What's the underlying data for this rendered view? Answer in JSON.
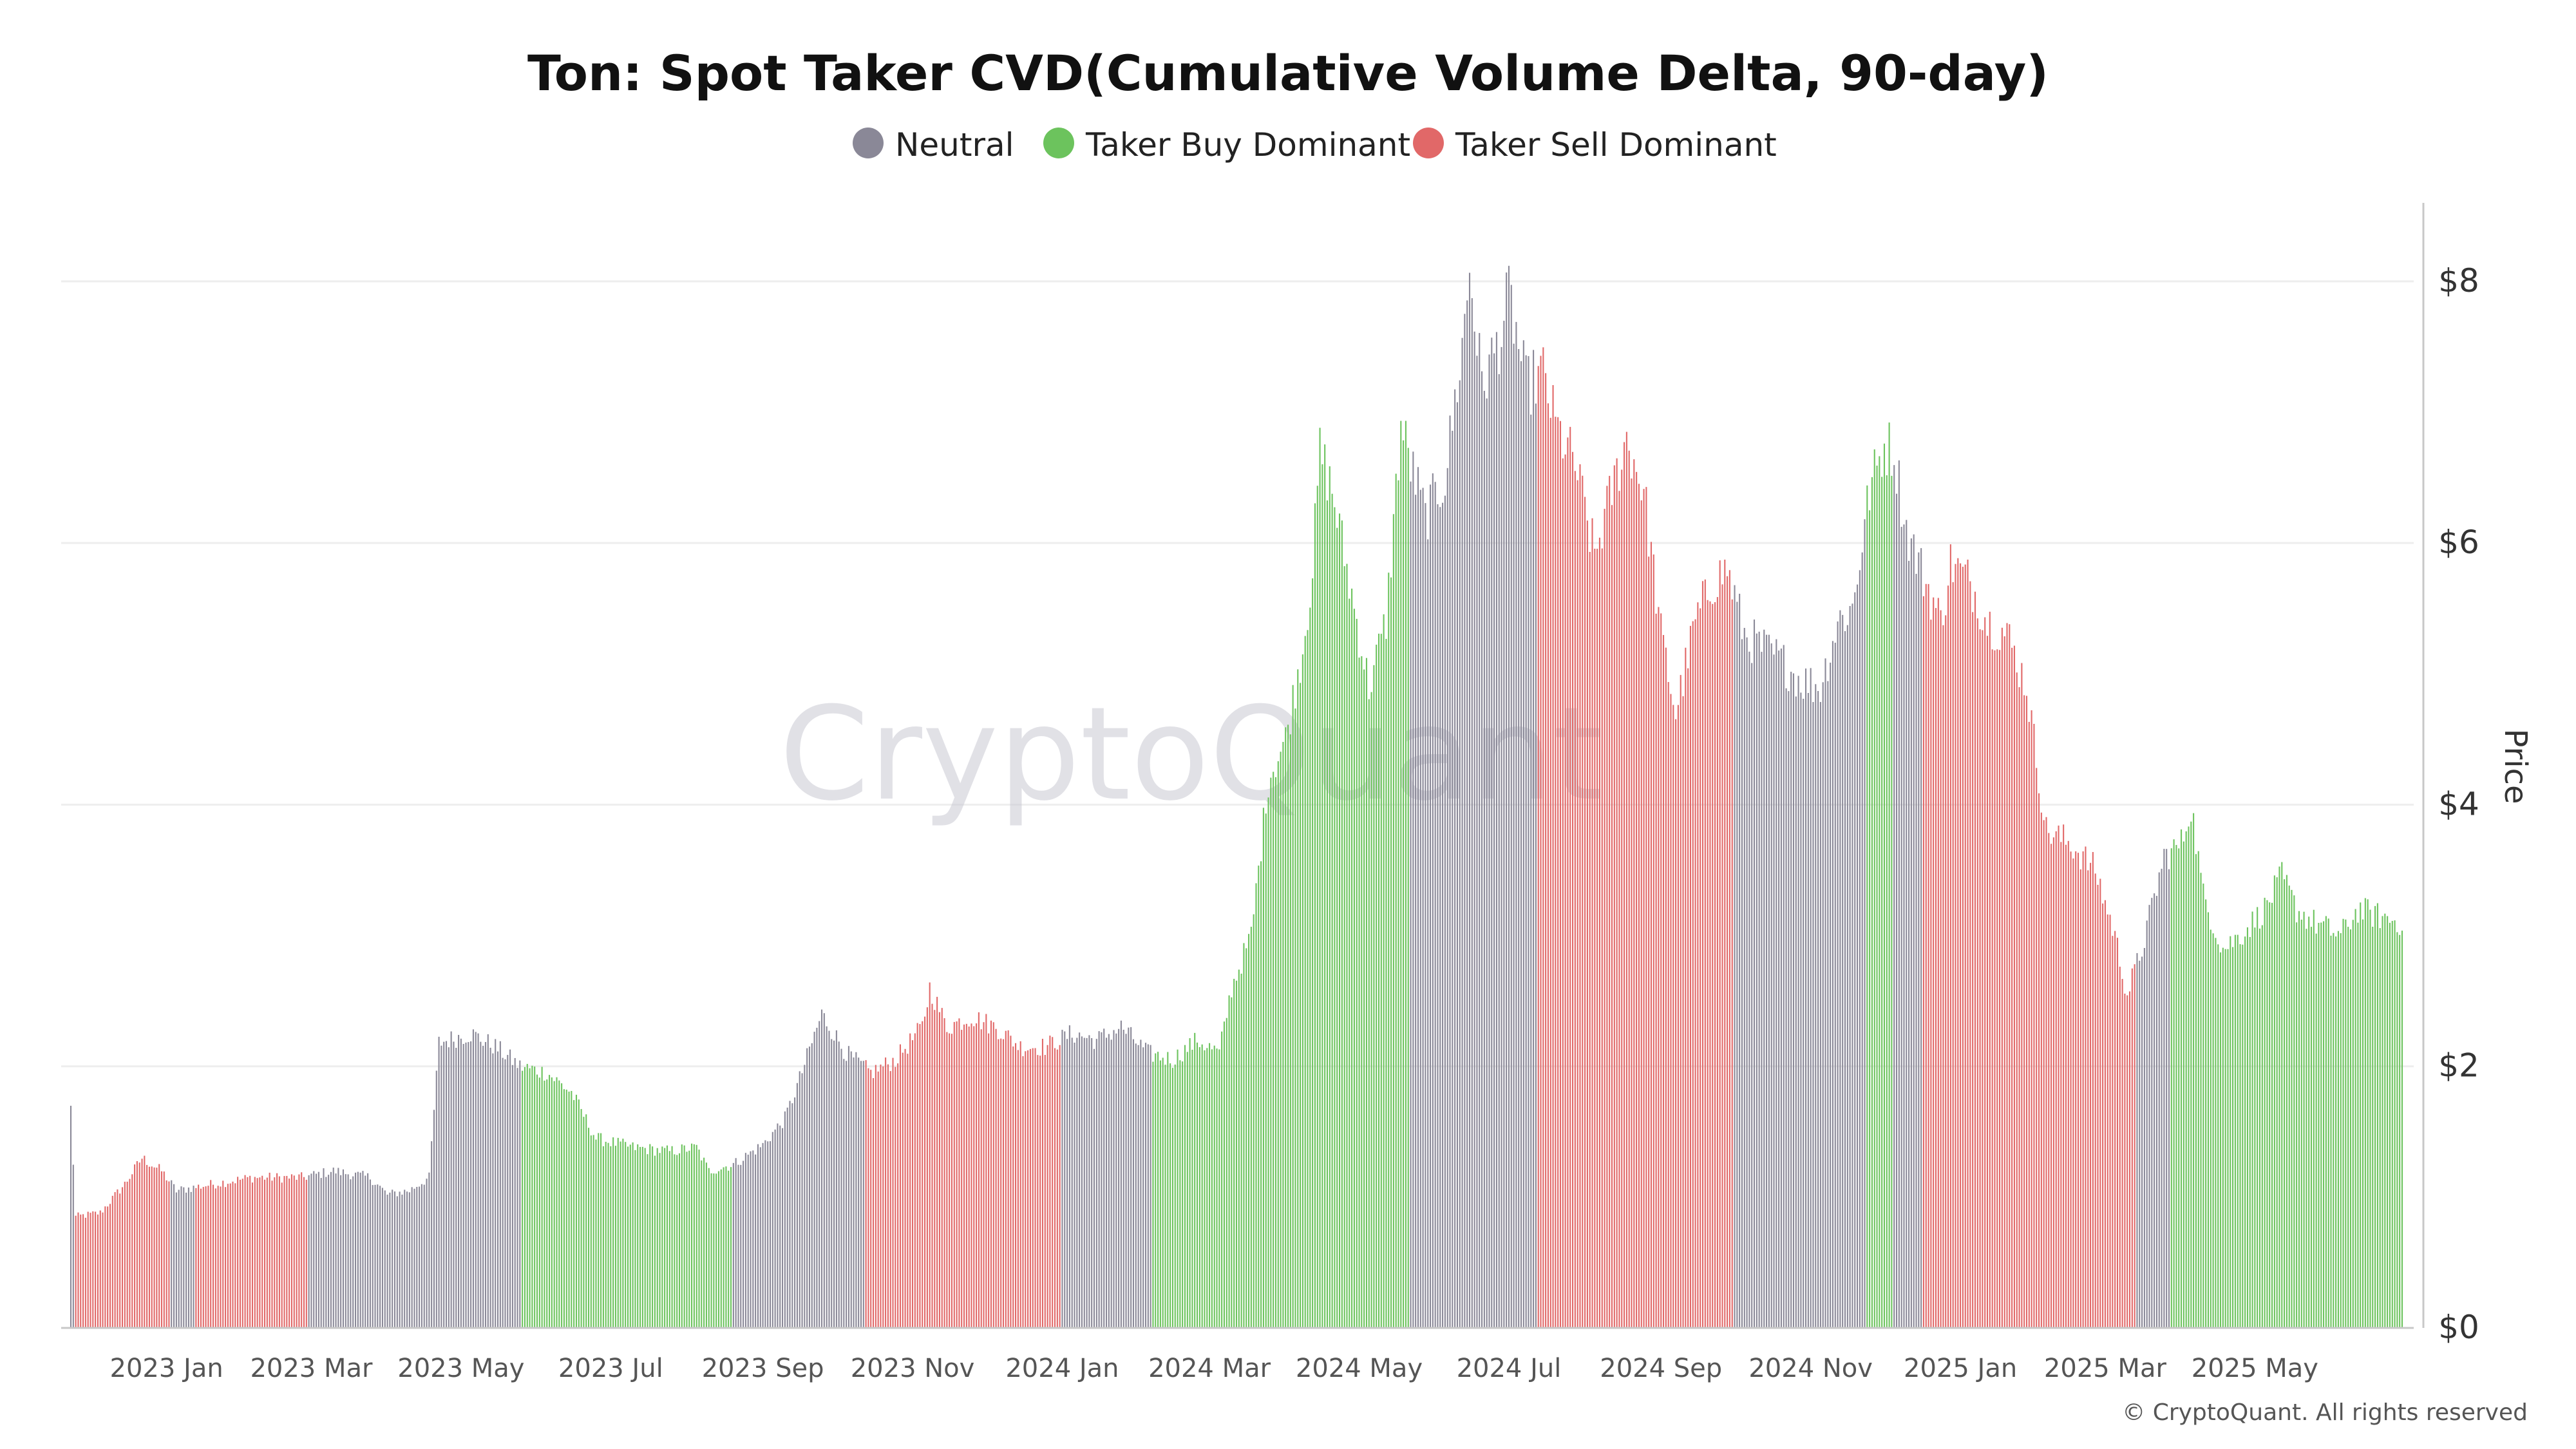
{
  "colors": {
    "neutral": "#8a8897",
    "buy": "#6cc35d",
    "sell": "#e16868",
    "grid": "#eeeeee",
    "axis": "#c8c8c8"
  },
  "watermark": "CryptoQuant",
  "copyright": "© CryptoQuant. All rights reserved",
  "chart_data": {
    "type": "bar",
    "title": "Ton: Spot Taker CVD(Cumulative Volume Delta, 90-day)",
    "legend_position": "top-center",
    "series": [
      {
        "name": "Neutral",
        "color": "#8a8897"
      },
      {
        "name": "Taker Buy Dominant",
        "color": "#6cc35d"
      },
      {
        "name": "Taker Sell Dominant",
        "color": "#e16868"
      }
    ],
    "ylabel": "Price",
    "ylim": [
      0,
      8.6
    ],
    "y_ticks": [
      {
        "value": 0,
        "label": "$0"
      },
      {
        "value": 2,
        "label": "$2"
      },
      {
        "value": 4,
        "label": "$4"
      },
      {
        "value": 6,
        "label": "$6"
      },
      {
        "value": 8,
        "label": "$8"
      }
    ],
    "x_start": "2022-11-23",
    "x_end": "2025-06-30",
    "x_ticks": [
      {
        "date": "2023-01-01",
        "label": "2023 Jan"
      },
      {
        "date": "2023-03-01",
        "label": "2023 Mar"
      },
      {
        "date": "2023-05-01",
        "label": "2023 May"
      },
      {
        "date": "2023-07-01",
        "label": "2023 Jul"
      },
      {
        "date": "2023-09-01",
        "label": "2023 Sep"
      },
      {
        "date": "2023-11-01",
        "label": "2023 Nov"
      },
      {
        "date": "2024-01-01",
        "label": "2024 Jan"
      },
      {
        "date": "2024-03-01",
        "label": "2024 Mar"
      },
      {
        "date": "2024-05-01",
        "label": "2024 May"
      },
      {
        "date": "2024-07-01",
        "label": "2024 Jul"
      },
      {
        "date": "2024-09-01",
        "label": "2024 Sep"
      },
      {
        "date": "2024-11-01",
        "label": "2024 Nov"
      },
      {
        "date": "2025-01-01",
        "label": "2025 Jan"
      },
      {
        "date": "2025-03-01",
        "label": "2025 Mar"
      },
      {
        "date": "2025-05-01",
        "label": "2025 May"
      }
    ],
    "price_points": [
      [
        "2022-11-23",
        1.68
      ],
      [
        "2022-11-25",
        0.85
      ],
      [
        "2022-12-05",
        0.88
      ],
      [
        "2022-12-15",
        1.1
      ],
      [
        "2022-12-22",
        1.3
      ],
      [
        "2022-12-30",
        1.2
      ],
      [
        "2023-01-05",
        1.05
      ],
      [
        "2023-01-20",
        1.1
      ],
      [
        "2023-02-05",
        1.15
      ],
      [
        "2023-02-25",
        1.15
      ],
      [
        "2023-03-10",
        1.2
      ],
      [
        "2023-03-25",
        1.15
      ],
      [
        "2023-04-01",
        1.02
      ],
      [
        "2023-04-10",
        1.05
      ],
      [
        "2023-04-18",
        1.15
      ],
      [
        "2023-04-22",
        2.18
      ],
      [
        "2023-05-05",
        2.25
      ],
      [
        "2023-05-15",
        2.15
      ],
      [
        "2023-05-25",
        2.0
      ],
      [
        "2023-06-05",
        1.95
      ],
      [
        "2023-06-15",
        1.8
      ],
      [
        "2023-06-25",
        1.45
      ],
      [
        "2023-07-10",
        1.38
      ],
      [
        "2023-07-25",
        1.35
      ],
      [
        "2023-08-05",
        1.38
      ],
      [
        "2023-08-10",
        1.2
      ],
      [
        "2023-08-20",
        1.25
      ],
      [
        "2023-09-01",
        1.4
      ],
      [
        "2023-09-10",
        1.6
      ],
      [
        "2023-09-15",
        1.85
      ],
      [
        "2023-09-25",
        2.4
      ],
      [
        "2023-10-05",
        2.1
      ],
      [
        "2023-10-15",
        1.95
      ],
      [
        "2023-10-25",
        2.05
      ],
      [
        "2023-11-05",
        2.3
      ],
      [
        "2023-11-08",
        2.6
      ],
      [
        "2023-11-15",
        2.3
      ],
      [
        "2023-11-25",
        2.38
      ],
      [
        "2023-12-05",
        2.3
      ],
      [
        "2023-12-15",
        2.15
      ],
      [
        "2023-12-25",
        2.15
      ],
      [
        "2024-01-05",
        2.25
      ],
      [
        "2024-01-15",
        2.2
      ],
      [
        "2024-01-25",
        2.3
      ],
      [
        "2024-02-05",
        2.1
      ],
      [
        "2024-02-15",
        2.05
      ],
      [
        "2024-02-25",
        2.2
      ],
      [
        "2024-03-05",
        2.1
      ],
      [
        "2024-03-10",
        2.6
      ],
      [
        "2024-03-18",
        3.0
      ],
      [
        "2024-03-25",
        4.2
      ],
      [
        "2024-04-01",
        4.5
      ],
      [
        "2024-04-08",
        5.2
      ],
      [
        "2024-04-12",
        5.8
      ],
      [
        "2024-04-15",
        6.7
      ],
      [
        "2024-04-20",
        6.4
      ],
      [
        "2024-04-28",
        5.6
      ],
      [
        "2024-05-05",
        4.9
      ],
      [
        "2024-05-12",
        5.4
      ],
      [
        "2024-05-18",
        6.9
      ],
      [
        "2024-05-22",
        6.6
      ],
      [
        "2024-05-28",
        6.2
      ],
      [
        "2024-06-05",
        6.5
      ],
      [
        "2024-06-12",
        7.5
      ],
      [
        "2024-06-15",
        8.1
      ],
      [
        "2024-06-20",
        7.2
      ],
      [
        "2024-06-28",
        7.6
      ],
      [
        "2024-07-01",
        7.9
      ],
      [
        "2024-07-08",
        7.2
      ],
      [
        "2024-07-15",
        7.3
      ],
      [
        "2024-07-20",
        6.9
      ],
      [
        "2024-07-28",
        6.6
      ],
      [
        "2024-08-05",
        5.9
      ],
      [
        "2024-08-12",
        6.4
      ],
      [
        "2024-08-18",
        6.8
      ],
      [
        "2024-08-25",
        6.4
      ],
      [
        "2024-09-01",
        5.3
      ],
      [
        "2024-09-07",
        4.7
      ],
      [
        "2024-09-15",
        5.4
      ],
      [
        "2024-09-22",
        5.7
      ],
      [
        "2024-09-28",
        5.8
      ],
      [
        "2024-10-05",
        5.3
      ],
      [
        "2024-10-12",
        5.2
      ],
      [
        "2024-10-20",
        5.1
      ],
      [
        "2024-10-28",
        4.95
      ],
      [
        "2024-11-05",
        4.9
      ],
      [
        "2024-11-12",
        5.4
      ],
      [
        "2024-11-18",
        5.5
      ],
      [
        "2024-11-25",
        6.4
      ],
      [
        "2024-12-01",
        6.75
      ],
      [
        "2024-12-05",
        6.7
      ],
      [
        "2024-12-10",
        6.1
      ],
      [
        "2024-12-18",
        5.7
      ],
      [
        "2024-12-24",
        5.4
      ],
      [
        "2024-12-28",
        5.85
      ],
      [
        "2025-01-05",
        5.7
      ],
      [
        "2025-01-12",
        5.4
      ],
      [
        "2025-01-20",
        5.3
      ],
      [
        "2025-01-28",
        4.9
      ],
      [
        "2025-02-05",
        3.8
      ],
      [
        "2025-02-15",
        3.7
      ],
      [
        "2025-02-25",
        3.5
      ],
      [
        "2025-03-05",
        3.0
      ],
      [
        "2025-03-10",
        2.55
      ],
      [
        "2025-03-16",
        2.9
      ],
      [
        "2025-03-25",
        3.6
      ],
      [
        "2025-04-01",
        3.7
      ],
      [
        "2025-04-05",
        4.0
      ],
      [
        "2025-04-10",
        3.3
      ],
      [
        "2025-04-18",
        2.9
      ],
      [
        "2025-04-25",
        3.0
      ],
      [
        "2025-05-05",
        3.2
      ],
      [
        "2025-05-12",
        3.45
      ],
      [
        "2025-05-18",
        3.2
      ],
      [
        "2025-05-25",
        3.1
      ],
      [
        "2025-06-05",
        3.0
      ],
      [
        "2025-06-12",
        3.2
      ],
      [
        "2025-06-20",
        3.15
      ],
      [
        "2025-06-30",
        3.1
      ]
    ],
    "regimes": [
      {
        "from": "2022-11-23",
        "to": "2022-11-24",
        "class": "Neutral"
      },
      {
        "from": "2022-11-25",
        "to": "2023-01-02",
        "class": "Taker Sell Dominant"
      },
      {
        "from": "2023-01-03",
        "to": "2023-01-12",
        "class": "Neutral"
      },
      {
        "from": "2023-01-13",
        "to": "2023-02-27",
        "class": "Taker Sell Dominant"
      },
      {
        "from": "2023-02-28",
        "to": "2023-05-25",
        "class": "Neutral"
      },
      {
        "from": "2023-05-26",
        "to": "2023-08-19",
        "class": "Taker Buy Dominant"
      },
      {
        "from": "2023-08-20",
        "to": "2023-10-12",
        "class": "Neutral"
      },
      {
        "from": "2023-10-13",
        "to": "2023-12-31",
        "class": "Taker Sell Dominant"
      },
      {
        "from": "2024-01-01",
        "to": "2024-02-06",
        "class": "Neutral"
      },
      {
        "from": "2024-02-07",
        "to": "2024-05-21",
        "class": "Taker Buy Dominant"
      },
      {
        "from": "2024-05-22",
        "to": "2024-07-12",
        "class": "Neutral"
      },
      {
        "from": "2024-07-13",
        "to": "2024-09-30",
        "class": "Taker Sell Dominant"
      },
      {
        "from": "2024-10-01",
        "to": "2024-11-23",
        "class": "Neutral"
      },
      {
        "from": "2024-11-24",
        "to": "2024-12-04",
        "class": "Taker Buy Dominant"
      },
      {
        "from": "2024-12-05",
        "to": "2024-12-16",
        "class": "Neutral"
      },
      {
        "from": "2024-12-17",
        "to": "2025-03-13",
        "class": "Taker Sell Dominant"
      },
      {
        "from": "2025-03-14",
        "to": "2025-03-27",
        "class": "Neutral"
      },
      {
        "from": "2025-03-28",
        "to": "2025-06-30",
        "class": "Taker Buy Dominant"
      }
    ]
  }
}
